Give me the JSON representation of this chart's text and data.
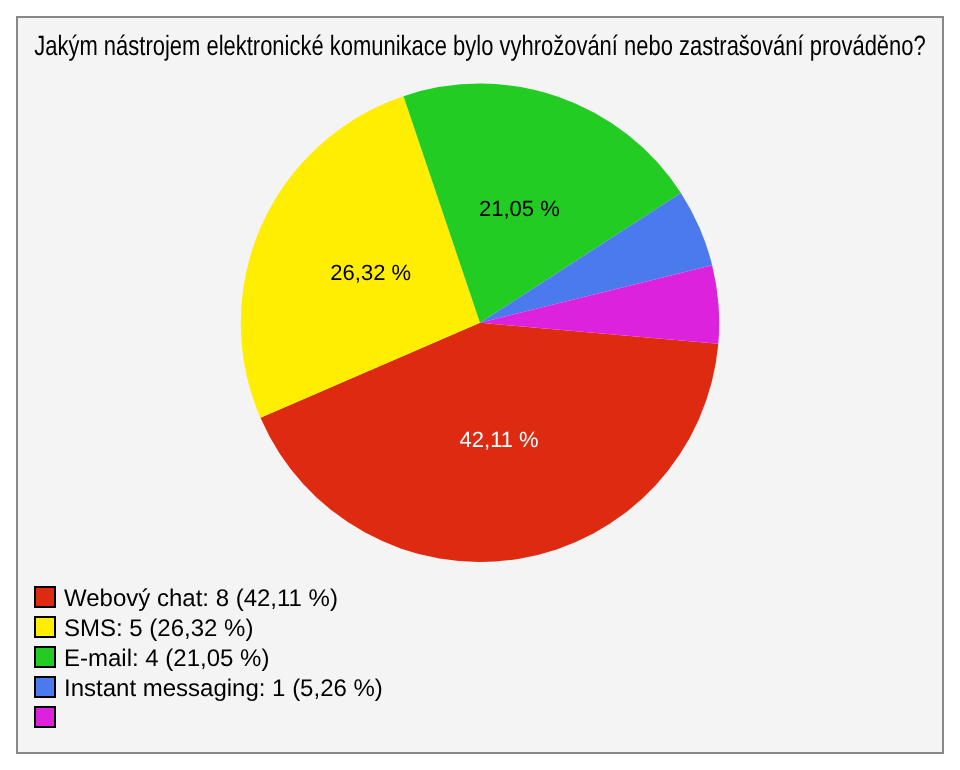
{
  "chart_data": {
    "type": "pie",
    "title": "Jakým nástrojem elektronické komunikace bylo vyhrožování nebo zastrašování prováděno?",
    "categories": [
      "Webový chat: 8 (42,11 %)",
      "SMS: 5 (26,32 %)",
      "E-mail: 4 (21,05 %)",
      "Instant messaging: 1 (5,26 %)",
      null
    ],
    "values": [
      42.11,
      26.32,
      21.05,
      5.26,
      5.26
    ],
    "colors": [
      "#dd2a10",
      "#ffee00",
      "#22cc22",
      "#4a7aee",
      "#dd22dd"
    ],
    "value_labels": [
      "42,11 %",
      "26,32 %",
      "21,05 %",
      null,
      null
    ],
    "legend": "bottom left"
  }
}
